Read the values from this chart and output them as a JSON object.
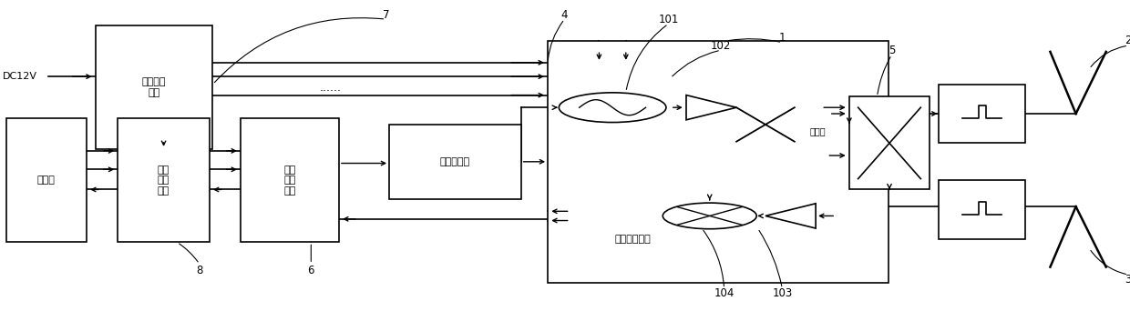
{
  "bg_color": "#ffffff",
  "fig_width": 12.4,
  "fig_height": 3.42,
  "labels": {
    "dc12v": "DC12V",
    "power_box": "电源管理\n模块",
    "upper_machine": "上位机",
    "comm_box": "通讯\n接口\n模块",
    "control_box": "控制\n处理\n电路",
    "freq_synth": "频率合成器",
    "rf_frontend": "射频收发前端",
    "coupler": "耦合器",
    "dots": "......",
    "n1": "1",
    "n2": "2",
    "n3": "3",
    "n4": "4",
    "n5": "5",
    "n6": "6",
    "n7": "7",
    "n8": "8",
    "n101": "101",
    "n102": "102",
    "n103": "103",
    "n104": "104"
  }
}
